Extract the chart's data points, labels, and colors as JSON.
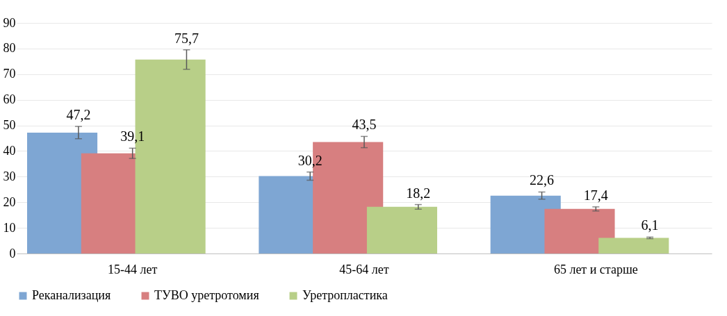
{
  "chart_data": {
    "type": "bar",
    "categories": [
      "15-44 лет",
      "45-64 лет",
      "65 лет и старше"
    ],
    "series": [
      {
        "name": "Реканализация",
        "color": "#7ea6d3",
        "values": [
          47.2,
          30.2,
          22.6
        ],
        "value_labels": [
          "47,2",
          "30,2",
          "22,6"
        ],
        "errors": [
          2.4,
          1.6,
          1.4
        ]
      },
      {
        "name": "ТУВО уретротомия",
        "color": "#d77f80",
        "values": [
          39.1,
          43.5,
          17.4
        ],
        "value_labels": [
          "39,1",
          "43,5",
          "17,4"
        ],
        "errors": [
          2,
          2.2,
          0.8
        ]
      },
      {
        "name": "Уретропластика",
        "color": "#b8cf88",
        "values": [
          75.7,
          18.2,
          6.1
        ],
        "value_labels": [
          "75,7",
          "18,2",
          "6,1"
        ],
        "errors": [
          3.8,
          0.9,
          0.3
        ]
      }
    ],
    "ylim": [
      0,
      90
    ],
    "yticks": [
      0,
      10,
      20,
      30,
      40,
      50,
      60,
      70,
      80,
      90
    ],
    "grid": "y",
    "legend": "bottom"
  }
}
